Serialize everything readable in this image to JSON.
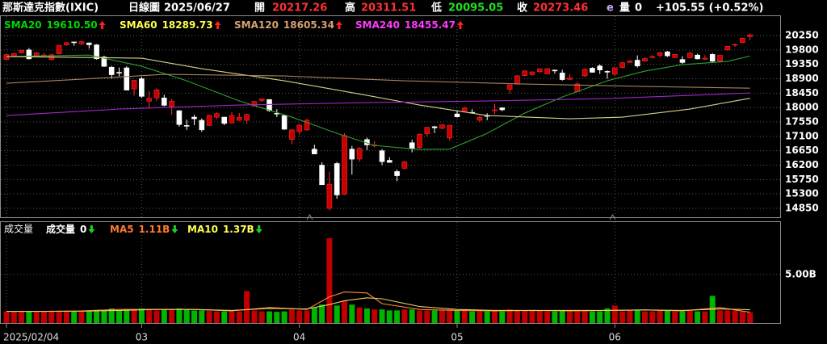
{
  "header": {
    "name": "那斯達克指數(IXIC)",
    "period": "日線圖",
    "date": "2025/06/27",
    "open_label": "開",
    "open": "20217.26",
    "high_label": "高",
    "high": "20311.51",
    "low_label": "低",
    "low": "20095.05",
    "close_label": "收",
    "close": "20273.46",
    "flag": "e",
    "volume_label": "量",
    "volume": 0,
    "change": "+105.55 (+0.52%)"
  },
  "chart_data": {
    "type": "candlestick",
    "categories": [
      "2025/02/04",
      null,
      null,
      null,
      null,
      null,
      null,
      null,
      null,
      null,
      null,
      null,
      null,
      null,
      null,
      null,
      null,
      null,
      "03",
      null,
      null,
      null,
      null,
      null,
      null,
      null,
      null,
      null,
      null,
      null,
      null,
      null,
      null,
      null,
      null,
      null,
      null,
      null,
      null,
      "04",
      null,
      null,
      null,
      null,
      null,
      null,
      null,
      null,
      null,
      null,
      null,
      null,
      null,
      null,
      null,
      null,
      null,
      null,
      null,
      null,
      "05",
      null,
      null,
      null,
      null,
      null,
      null,
      null,
      null,
      null,
      null,
      null,
      null,
      null,
      null,
      null,
      null,
      null,
      null,
      null,
      null,
      "06",
      null,
      null,
      null,
      null,
      null,
      null,
      null,
      null,
      null,
      null,
      null,
      null,
      null,
      null,
      null,
      null,
      null,
      null
    ],
    "open": [
      19500,
      19600,
      19710,
      19800,
      19620,
      19640,
      19500,
      19680,
      19960,
      20050,
      19990,
      20020,
      19960,
      19580,
      19260,
      19100,
      19240,
      18580,
      18900,
      18200,
      18300,
      18300,
      18030,
      17900,
      17440,
      17700,
      17600,
      17440,
      17700,
      17700,
      17520,
      17600,
      17600,
      18050,
      18220,
      18250,
      17820,
      17750,
      17000,
      17250,
      17300,
      16700,
      16200,
      14850,
      16250,
      15290,
      16700,
      16390,
      17000,
      16800,
      16650,
      16350,
      16000,
      16100,
      16900,
      16750,
      17180,
      17400,
      17350,
      17050,
      17800,
      17880,
      17850,
      17600,
      17750,
      17900,
      17990,
      18570,
      18730,
      19000,
      19030,
      19120,
      19050,
      19170,
      19080,
      18880,
      18500,
      18990,
      19230,
      19300,
      19130,
      19040,
      19250,
      19410,
      19480,
      19450,
      19570,
      19630,
      19740,
      19560,
      19500,
      19560,
      19640,
      19510,
      19660,
      19450,
      19800,
      19960,
      20030,
      20217.26
    ],
    "high": [
      19680,
      19700,
      19800,
      19860,
      19730,
      19700,
      19680,
      19950,
      20040,
      20060,
      20070,
      20030,
      19980,
      19620,
      19300,
      19250,
      19290,
      18860,
      18960,
      18520,
      18600,
      18400,
      18270,
      17920,
      17620,
      17770,
      17660,
      17780,
      17850,
      17710,
      17860,
      17830,
      17810,
      18200,
      18280,
      18260,
      17950,
      17760,
      17330,
      17480,
      17650,
      16840,
      16290,
      16000,
      16300,
      17200,
      16800,
      16760,
      17060,
      16950,
      16700,
      16450,
      16060,
      16330,
      17000,
      17180,
      17390,
      17430,
      17470,
      17450,
      17900,
      18030,
      17950,
      17750,
      17820,
      18120,
      18010,
      18720,
      19010,
      19160,
      19130,
      19220,
      19230,
      19190,
      19180,
      19040,
      18800,
      19220,
      19260,
      19350,
      19160,
      19250,
      19420,
      19480,
      19630,
      19570,
      19640,
      19740,
      19770,
      19670,
      19600,
      19730,
      19680,
      19640,
      19700,
      19640,
      19930,
      20000,
      20190,
      20311.51
    ],
    "low": [
      19480,
      19560,
      19680,
      19500,
      19600,
      19610,
      19470,
      19660,
      19930,
      19930,
      19960,
      19840,
      19500,
      19270,
      18900,
      18980,
      18540,
      18370,
      18300,
      17990,
      18200,
      18040,
      17770,
      17400,
      17300,
      17450,
      17240,
      17430,
      17630,
      17450,
      17500,
      17580,
      17480,
      18040,
      18170,
      17870,
      17700,
      17300,
      16850,
      17150,
      17280,
      16540,
      15580,
      14784,
      15150,
      15270,
      15900,
      16300,
      16670,
      16750,
      16200,
      16270,
      15700,
      16080,
      16600,
      16720,
      17100,
      17200,
      17320,
      16980,
      17690,
      17860,
      17830,
      17550,
      17600,
      17800,
      17880,
      18440,
      18720,
      18980,
      18990,
      19080,
      19040,
      19060,
      18840,
      18860,
      18480,
      18950,
      19090,
      19050,
      18900,
      18990,
      19220,
      19400,
      19250,
      19430,
      19530,
      19570,
      19580,
      19550,
      19370,
      19540,
      19500,
      19490,
      19420,
      19400,
      19780,
      19900,
      20010,
      20095.05
    ],
    "close": [
      19654,
      19692,
      19791,
      19523,
      19714,
      19643,
      19649,
      19945,
      20026,
      20041,
      20056,
      19962,
      19524,
      19286,
      19026,
      19075,
      18544,
      18847,
      18350,
      18285,
      18553,
      18069,
      18196,
      17468,
      17436,
      17648,
      17303,
      17754,
      17809,
      17504,
      17751,
      17692,
      17784,
      18189,
      18271,
      17900,
      17804,
      17323,
      17299,
      17450,
      17601,
      16550,
      15588,
      15603,
      15268,
      17125,
      16387,
      16724,
      16832,
      16824,
      16307,
      16286,
      15870,
      16300,
      16708,
      17166,
      17383,
      17366,
      17461,
      17446,
      17710,
      17978,
      17844,
      17690,
      17738,
      17929,
      17929,
      18708,
      18991,
      19146,
      19112,
      19211,
      19215,
      19143,
      18873,
      18926,
      18737,
      19199,
      19101,
      19175,
      19114,
      19243,
      19399,
      19460,
      19299,
      19530,
      19591,
      19715,
      19615,
      19662,
      19407,
      19701,
      19521,
      19547,
      19447,
      19631,
      19913,
      19973,
      20168,
      20273.46
    ],
    "up_color": "#c80000",
    "up_wick": "#ff2a2a",
    "down_color": "#ffffff",
    "ylim": [
      14597,
      20856
    ],
    "yticks": [
      14850,
      15300,
      15750,
      16200,
      16650,
      17100,
      17550,
      18000,
      18450,
      18900,
      19350,
      19800,
      20250
    ],
    "grid": true,
    "lines": [
      {
        "name": "SMA20",
        "value_label": "19610.50",
        "color": "#2fa02f",
        "legend_color": "#00d800",
        "x": [
          0,
          11,
          18,
          24,
          31,
          38,
          44,
          49,
          55,
          59,
          64,
          69,
          74,
          80,
          85,
          90,
          96,
          99
        ],
        "values": [
          19593,
          19640,
          19290,
          18836,
          18205,
          17700,
          17194,
          16815,
          16689,
          16700,
          17194,
          17826,
          18330,
          18836,
          19139,
          19340,
          19442,
          19610.5
        ]
      },
      {
        "name": "SMA60",
        "value_label": "18289.73",
        "color": "#d8d08a",
        "legend_color": "#ffff50",
        "x": [
          0,
          18,
          26,
          37,
          48,
          55,
          64,
          75,
          82,
          91,
          99
        ],
        "values": [
          19593,
          19543,
          19215,
          18836,
          18382,
          18078,
          17750,
          17649,
          17700,
          17952,
          18289.73
        ]
      },
      {
        "name": "SMA120",
        "value_label": "18605.34",
        "color": "#a4825e",
        "legend_color": "#d6a274",
        "x": [
          0,
          10,
          21,
          37,
          53,
          69,
          85,
          99
        ],
        "values": [
          18760,
          18886,
          19038,
          18987,
          18836,
          18735,
          18659,
          18605.34
        ]
      },
      {
        "name": "SMA240",
        "value_label": "18455.47",
        "color": "#a226c8",
        "legend_color": "#ff3cff",
        "x": [
          0,
          15,
          31,
          48,
          64,
          80,
          99
        ],
        "values": [
          17750,
          17952,
          18078,
          18154,
          18205,
          18280,
          18455.47
        ]
      }
    ],
    "volume": {
      "title": "成交量",
      "label": "成交量",
      "value": 0,
      "values": [
        1.2,
        1.2,
        1.25,
        1.2,
        1.15,
        1.2,
        1.2,
        1.25,
        1.2,
        1.2,
        1.3,
        1.3,
        1.35,
        1.35,
        1.5,
        1.3,
        1.45,
        1.4,
        1.5,
        1.45,
        1.3,
        1.4,
        1.4,
        1.5,
        1.4,
        1.3,
        1.3,
        1.25,
        1.2,
        1.2,
        1.2,
        1.2,
        3.3,
        1.3,
        1.2,
        1.2,
        1.15,
        1.2,
        1.4,
        1.3,
        1.3,
        1.6,
        1.9,
        8.75,
        1.8,
        2.3,
        1.9,
        1.6,
        1.5,
        1.4,
        1.4,
        1.3,
        1.3,
        1.4,
        1.4,
        1.3,
        1.3,
        1.3,
        1.3,
        1.4,
        1.3,
        1.3,
        1.2,
        1.2,
        1.2,
        1.3,
        1.2,
        1.4,
        1.3,
        1.3,
        1.3,
        1.3,
        1.2,
        1.2,
        1.3,
        1.2,
        1.2,
        1.3,
        1.2,
        1.2,
        1.5,
        1.8,
        1.2,
        1.3,
        1.3,
        1.2,
        1.2,
        1.3,
        1.3,
        1.2,
        1.2,
        1.3,
        1.2,
        1.2,
        2.8,
        1.3,
        1.3,
        1.3,
        1.2,
        1.1
      ],
      "up_color": "#c00000",
      "down_color": "#00b400",
      "ylim": [
        0,
        10.17
      ],
      "yticks": [
        {
          "value": 5,
          "label": "5.00B"
        }
      ],
      "lines": [
        {
          "name": "MA5",
          "value_label": "1.11B",
          "color": "#ff8a3a",
          "legend_color": "#ff7a30",
          "x": [
            0,
            5,
            10,
            15,
            20,
            25,
            30,
            35,
            40,
            43,
            45,
            48,
            50,
            55,
            60,
            65,
            70,
            75,
            80,
            85,
            90,
            95,
            99
          ],
          "values": [
            1.2,
            1.2,
            1.25,
            1.4,
            1.4,
            1.4,
            1.25,
            1.6,
            1.4,
            2.7,
            3.2,
            3.1,
            2.0,
            1.4,
            1.3,
            1.25,
            1.3,
            1.25,
            1.3,
            1.35,
            1.25,
            1.6,
            1.11
          ]
        },
        {
          "name": "MA10",
          "value_label": "1.37B",
          "color": "#e8d060",
          "legend_color": "#ffff50",
          "x": [
            0,
            5,
            10,
            15,
            20,
            25,
            30,
            35,
            40,
            43,
            45,
            48,
            50,
            55,
            60,
            65,
            70,
            75,
            80,
            85,
            90,
            95,
            99
          ],
          "values": [
            1.2,
            1.2,
            1.22,
            1.3,
            1.4,
            1.4,
            1.3,
            1.5,
            1.45,
            1.9,
            2.3,
            2.6,
            2.5,
            1.7,
            1.4,
            1.3,
            1.3,
            1.3,
            1.3,
            1.35,
            1.3,
            1.45,
            1.37
          ]
        }
      ]
    }
  }
}
